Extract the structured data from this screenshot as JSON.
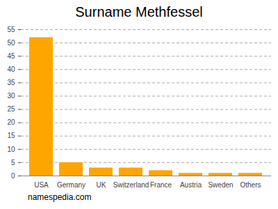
{
  "chart_data": {
    "type": "bar",
    "title": "Surname Methfessel",
    "caption": "namespedia.com",
    "categories": [
      "USA",
      "Germany",
      "UK",
      "Switzerland",
      "France",
      "Austria",
      "Sweden",
      "Others"
    ],
    "values": [
      52,
      5,
      3,
      3,
      2,
      1,
      1,
      1
    ],
    "color": "#ffa500",
    "ylim": [
      0,
      55
    ],
    "yticks": [
      0,
      5,
      10,
      15,
      20,
      25,
      30,
      35,
      40,
      45,
      50,
      55
    ],
    "grid": true
  }
}
